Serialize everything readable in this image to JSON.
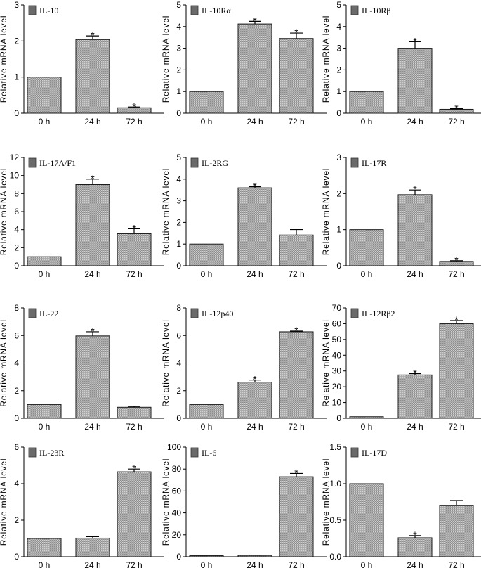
{
  "figure_title": "",
  "chart_data": [
    {
      "type": "bar",
      "title": "IL-10",
      "legend": "IL-10",
      "ylabel": "Relative mRNA level",
      "xlabel": "",
      "categories": [
        "0 h",
        "24 h",
        "72 h"
      ],
      "values": [
        1.0,
        2.04,
        0.15
      ],
      "errors": [
        0,
        0.1,
        0.02
      ],
      "significant": [
        false,
        true,
        true
      ],
      "ylim": [
        0,
        3
      ],
      "yticks": [
        0,
        1,
        2,
        3
      ],
      "ytick_labels": [
        "0",
        "1",
        "2",
        "3"
      ]
    },
    {
      "type": "bar",
      "title": "IL-10Rα",
      "legend": "IL-10Rα",
      "ylabel": "Relative mRNA level",
      "xlabel": "",
      "categories": [
        "0 h",
        "24 h",
        "72 h"
      ],
      "values": [
        1.0,
        4.12,
        3.45
      ],
      "errors": [
        0,
        0.12,
        0.25
      ],
      "significant": [
        false,
        true,
        true
      ],
      "ylim": [
        0,
        5
      ],
      "yticks": [
        0,
        1,
        2,
        3,
        4,
        5
      ],
      "ytick_labels": [
        "0",
        "1",
        "2",
        "3",
        "4",
        "5"
      ]
    },
    {
      "type": "bar",
      "title": "IL-10Rβ",
      "legend": "IL-10Rβ",
      "ylabel": "Relative mRNA level",
      "xlabel": "",
      "categories": [
        "0 h",
        "24 h",
        "72 h"
      ],
      "values": [
        1.0,
        3.0,
        0.18
      ],
      "errors": [
        0,
        0.3,
        0.03
      ],
      "significant": [
        false,
        true,
        true
      ],
      "ylim": [
        0,
        5
      ],
      "yticks": [
        0,
        1,
        2,
        3,
        4,
        5
      ],
      "ytick_labels": [
        "0",
        "1",
        "2",
        "3",
        "4",
        "5"
      ]
    },
    {
      "type": "bar",
      "title": "IL-17A/F1",
      "legend": "IL-17A/F1",
      "ylabel": "Relative mRNA level",
      "xlabel": "",
      "categories": [
        "0 h",
        "24 h",
        "72 h"
      ],
      "values": [
        1.0,
        9.0,
        3.55
      ],
      "errors": [
        0,
        0.6,
        0.55
      ],
      "significant": [
        false,
        true,
        true
      ],
      "ylim": [
        0,
        12
      ],
      "yticks": [
        0,
        2,
        4,
        6,
        8,
        10,
        12
      ],
      "ytick_labels": [
        "0",
        "2",
        "4",
        "6",
        "8",
        "10",
        "12"
      ]
    },
    {
      "type": "bar",
      "title": "IL-2RG",
      "legend": "IL-2RG",
      "ylabel": "Relative mRNA level",
      "xlabel": "",
      "categories": [
        "0 h",
        "24 h",
        "72 h"
      ],
      "values": [
        1.0,
        3.6,
        1.42
      ],
      "errors": [
        0,
        0.05,
        0.25
      ],
      "significant": [
        false,
        true,
        false
      ],
      "ylim": [
        0,
        5
      ],
      "yticks": [
        0,
        1,
        2,
        3,
        4,
        5
      ],
      "ytick_labels": [
        "0",
        "1",
        "2",
        "3",
        "4",
        "5"
      ]
    },
    {
      "type": "bar",
      "title": "IL-17R",
      "legend": "IL-17R",
      "ylabel": "Relative mRNA level",
      "xlabel": "",
      "categories": [
        "0 h",
        "24 h",
        "72 h"
      ],
      "values": [
        1.0,
        1.97,
        0.12
      ],
      "errors": [
        0,
        0.13,
        0.02
      ],
      "significant": [
        false,
        true,
        true
      ],
      "ylim": [
        0,
        3
      ],
      "yticks": [
        0,
        1,
        2,
        3
      ],
      "ytick_labels": [
        "0",
        "1",
        "2",
        "3"
      ]
    },
    {
      "type": "bar",
      "title": "IL-22",
      "legend": "IL-22",
      "ylabel": "Relative mRNA level",
      "xlabel": "",
      "categories": [
        "0 h",
        "24 h",
        "72 h"
      ],
      "values": [
        1.0,
        5.97,
        0.8
      ],
      "errors": [
        0,
        0.3,
        0.06
      ],
      "significant": [
        false,
        true,
        false
      ],
      "ylim": [
        0,
        8
      ],
      "yticks": [
        0,
        2,
        4,
        6,
        8
      ],
      "ytick_labels": [
        "0",
        "2",
        "4",
        "6",
        "8"
      ]
    },
    {
      "type": "bar",
      "title": "IL-12p40",
      "legend": "IL-12p40",
      "ylabel": "Relative mRNA level",
      "xlabel": "",
      "categories": [
        "0 h",
        "24 h",
        "72 h"
      ],
      "values": [
        1.0,
        2.62,
        6.27
      ],
      "errors": [
        0,
        0.15,
        0.05
      ],
      "significant": [
        false,
        true,
        true
      ],
      "ylim": [
        0,
        8
      ],
      "yticks": [
        0,
        2,
        4,
        6,
        8
      ],
      "ytick_labels": [
        "0",
        "2",
        "4",
        "6",
        "8"
      ]
    },
    {
      "type": "bar",
      "title": "IL-12Rβ2",
      "legend": "IL-12Rβ2",
      "ylabel": "Relative mRNA level",
      "xlabel": "",
      "categories": [
        "0 h",
        "24 h",
        "72 h"
      ],
      "values": [
        1.0,
        27.5,
        60.0
      ],
      "errors": [
        0,
        0.8,
        2.0
      ],
      "significant": [
        false,
        true,
        true
      ],
      "ylim": [
        0,
        70
      ],
      "yticks": [
        0,
        10,
        20,
        30,
        40,
        50,
        60,
        70
      ],
      "ytick_labels": [
        "0",
        "10",
        "20",
        "30",
        "40",
        "50",
        "60",
        "70"
      ]
    },
    {
      "type": "bar",
      "title": "IL-23R",
      "legend": "IL-23R",
      "ylabel": "Relative mRNA level",
      "xlabel": "",
      "categories": [
        "0 h",
        "24 h",
        "72 h"
      ],
      "values": [
        1.0,
        1.02,
        4.65
      ],
      "errors": [
        0,
        0.08,
        0.15
      ],
      "significant": [
        false,
        false,
        true
      ],
      "ylim": [
        0,
        6
      ],
      "yticks": [
        0,
        2,
        4,
        6
      ],
      "ytick_labels": [
        "0",
        "2",
        "4",
        "6"
      ]
    },
    {
      "type": "bar",
      "title": "IL-6",
      "legend": "IL-6",
      "ylabel": "Relative mRNA level",
      "xlabel": "",
      "categories": [
        "0 h",
        "24 h",
        "72 h"
      ],
      "values": [
        1.0,
        1.2,
        73.0
      ],
      "errors": [
        0,
        0.15,
        3.0
      ],
      "significant": [
        false,
        false,
        true
      ],
      "ylim": [
        0,
        100
      ],
      "yticks": [
        0,
        20,
        40,
        60,
        80,
        100
      ],
      "ytick_labels": [
        "0",
        "20",
        "40",
        "60",
        "80",
        "100"
      ]
    },
    {
      "type": "bar",
      "title": "IL-17D",
      "legend": "IL-17D",
      "ylabel": "Relative mRNA level",
      "xlabel": "",
      "categories": [
        "0 h",
        "24 h",
        "72 h"
      ],
      "values": [
        1.0,
        0.26,
        0.7
      ],
      "errors": [
        0,
        0.03,
        0.07
      ],
      "significant": [
        false,
        true,
        false
      ],
      "ylim": [
        0,
        1.5
      ],
      "yticks": [
        0,
        0.5,
        1.0,
        1.5
      ],
      "ytick_labels": [
        "0.0",
        "0.5",
        "1.0",
        "1.5"
      ]
    }
  ]
}
